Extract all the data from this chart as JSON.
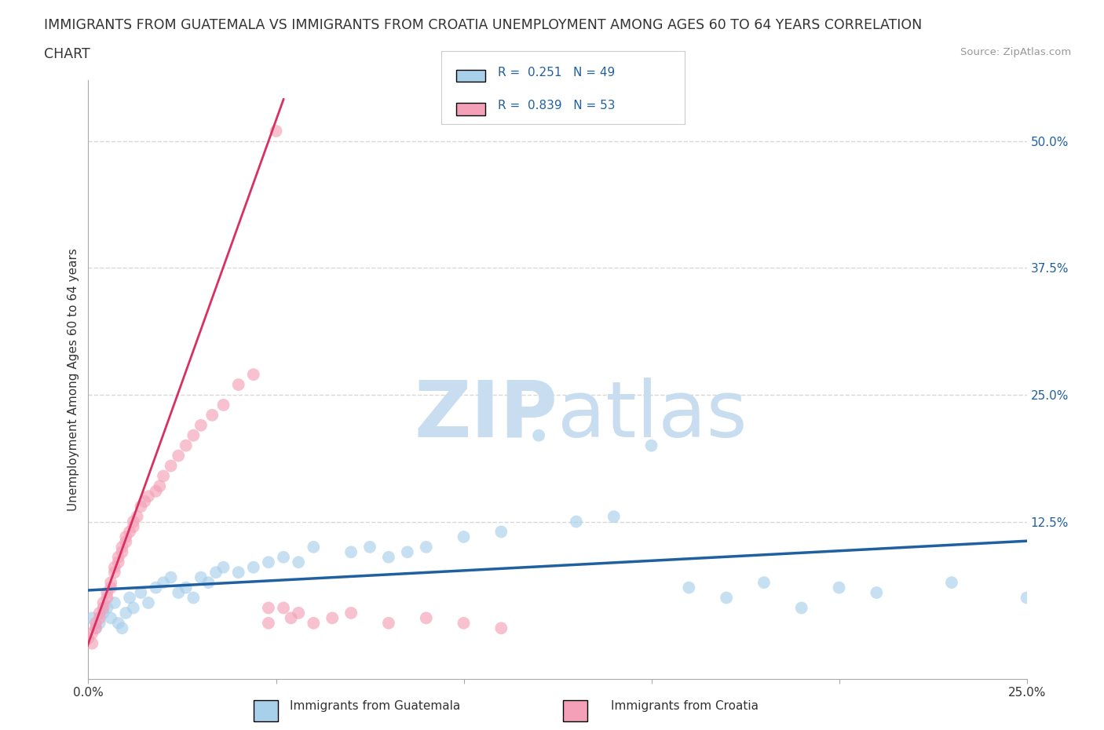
{
  "title_line1": "IMMIGRANTS FROM GUATEMALA VS IMMIGRANTS FROM CROATIA UNEMPLOYMENT AMONG AGES 60 TO 64 YEARS CORRELATION",
  "title_line2": "CHART",
  "source": "Source: ZipAtlas.com",
  "ylabel": "Unemployment Among Ages 60 to 64 years",
  "xlim": [
    0.0,
    0.25
  ],
  "ylim": [
    -0.03,
    0.56
  ],
  "yticks_right": [
    0.0,
    0.125,
    0.25,
    0.375,
    0.5
  ],
  "yticklabels_right": [
    "",
    "12.5%",
    "25.0%",
    "37.5%",
    "50.0%"
  ],
  "r_guatemala": 0.251,
  "n_guatemala": 49,
  "r_croatia": 0.839,
  "n_croatia": 53,
  "color_guatemala": "#a8d0eb",
  "color_croatia": "#f4a0b8",
  "line_color_guatemala": "#2060a0",
  "line_color_croatia": "#d83060",
  "watermark_zip": "ZIP",
  "watermark_atlas": "atlas",
  "watermark_color": "#c8ddef",
  "background_color": "#ffffff",
  "grid_color": "#d8d8d8",
  "legend_label_guatemala": "Immigrants from Guatemala",
  "legend_label_croatia": "Immigrants from Croatia",
  "guatemala_x": [
    0.001,
    0.002,
    0.003,
    0.004,
    0.005,
    0.006,
    0.007,
    0.008,
    0.009,
    0.01,
    0.011,
    0.012,
    0.014,
    0.016,
    0.018,
    0.02,
    0.022,
    0.024,
    0.026,
    0.028,
    0.03,
    0.032,
    0.034,
    0.036,
    0.04,
    0.044,
    0.048,
    0.052,
    0.056,
    0.06,
    0.07,
    0.075,
    0.08,
    0.085,
    0.09,
    0.1,
    0.11,
    0.12,
    0.13,
    0.14,
    0.15,
    0.16,
    0.17,
    0.18,
    0.19,
    0.2,
    0.21,
    0.23,
    0.25
  ],
  "guatemala_y": [
    0.03,
    0.02,
    0.025,
    0.035,
    0.04,
    0.03,
    0.045,
    0.025,
    0.02,
    0.035,
    0.05,
    0.04,
    0.055,
    0.045,
    0.06,
    0.065,
    0.07,
    0.055,
    0.06,
    0.05,
    0.07,
    0.065,
    0.075,
    0.08,
    0.075,
    0.08,
    0.085,
    0.09,
    0.085,
    0.1,
    0.095,
    0.1,
    0.09,
    0.095,
    0.1,
    0.11,
    0.115,
    0.21,
    0.125,
    0.13,
    0.2,
    0.06,
    0.05,
    0.065,
    0.04,
    0.06,
    0.055,
    0.065,
    0.05
  ],
  "croatia_x": [
    0.0,
    0.001,
    0.001,
    0.002,
    0.002,
    0.003,
    0.003,
    0.004,
    0.004,
    0.005,
    0.005,
    0.006,
    0.006,
    0.007,
    0.007,
    0.008,
    0.008,
    0.009,
    0.009,
    0.01,
    0.01,
    0.011,
    0.012,
    0.012,
    0.013,
    0.014,
    0.015,
    0.016,
    0.018,
    0.019,
    0.02,
    0.022,
    0.024,
    0.026,
    0.028,
    0.03,
    0.033,
    0.036,
    0.04,
    0.044,
    0.048,
    0.048,
    0.05,
    0.052,
    0.054,
    0.056,
    0.06,
    0.065,
    0.07,
    0.08,
    0.09,
    0.1,
    0.11
  ],
  "croatia_y": [
    0.01,
    0.005,
    0.015,
    0.02,
    0.025,
    0.03,
    0.035,
    0.04,
    0.045,
    0.05,
    0.055,
    0.06,
    0.065,
    0.075,
    0.08,
    0.085,
    0.09,
    0.095,
    0.1,
    0.105,
    0.11,
    0.115,
    0.12,
    0.125,
    0.13,
    0.14,
    0.145,
    0.15,
    0.155,
    0.16,
    0.17,
    0.18,
    0.19,
    0.2,
    0.21,
    0.22,
    0.23,
    0.24,
    0.26,
    0.27,
    0.025,
    0.04,
    0.51,
    0.04,
    0.03,
    0.035,
    0.025,
    0.03,
    0.035,
    0.025,
    0.03,
    0.025,
    0.02
  ]
}
